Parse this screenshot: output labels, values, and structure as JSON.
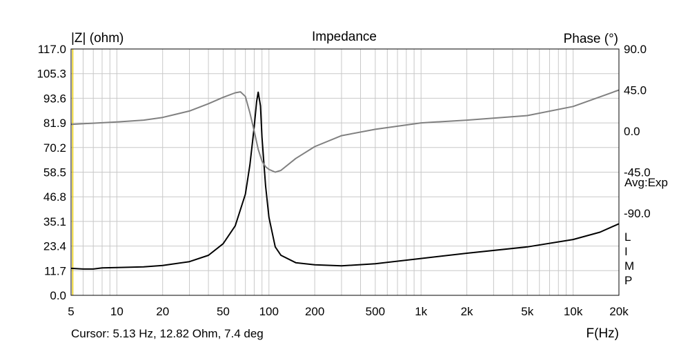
{
  "chart_data": {
    "type": "line",
    "title": "Impedance",
    "left_axis_label": "|Z| (ohm)",
    "right_axis_label": "Phase (°)",
    "x_axis_label": "F(Hz)",
    "x_scale": "log",
    "xlim": [
      5,
      20000
    ],
    "ylim": [
      0.0,
      117.0
    ],
    "y2lim": [
      -180,
      90
    ],
    "x_ticks": [
      {
        "v": 5,
        "label": "5"
      },
      {
        "v": 10,
        "label": "10"
      },
      {
        "v": 20,
        "label": "20"
      },
      {
        "v": 50,
        "label": "50"
      },
      {
        "v": 100,
        "label": "100"
      },
      {
        "v": 200,
        "label": "200"
      },
      {
        "v": 500,
        "label": "500"
      },
      {
        "v": 1000,
        "label": "1k"
      },
      {
        "v": 2000,
        "label": "2k"
      },
      {
        "v": 5000,
        "label": "5k"
      },
      {
        "v": 10000,
        "label": "10k"
      },
      {
        "v": 20000,
        "label": "20k"
      }
    ],
    "y_ticks": [
      "0.0",
      "11.7",
      "23.4",
      "35.1",
      "46.8",
      "58.5",
      "70.2",
      "81.9",
      "93.6",
      "105.3",
      "117.0"
    ],
    "y2_ticks": [
      {
        "v": 90,
        "label": "90.0"
      },
      {
        "v": 45,
        "label": "45.0"
      },
      {
        "v": 0,
        "label": "0.0"
      },
      {
        "v": -45,
        "label": "-45.0"
      },
      {
        "v": -90,
        "label": "-90.0"
      }
    ],
    "annotation": "Avg:Exp",
    "side_letters": [
      "L",
      "I",
      "M",
      "P"
    ],
    "grid": true,
    "cursor_text": "Cursor: 5.13 Hz, 12.82 Ohm, 7.4 deg",
    "colors": {
      "impedance": "#000000",
      "phase": "#808080",
      "grid": "#c8c8c8",
      "frame": "#000000",
      "cursor": "#e6c800"
    },
    "series": [
      {
        "kind": "impedance",
        "x": [
          5,
          6,
          7,
          8,
          10,
          15,
          20,
          30,
          40,
          50,
          60,
          70,
          75,
          80,
          83,
          85,
          88,
          90,
          95,
          100,
          110,
          120,
          150,
          200,
          300,
          500,
          1000,
          2000,
          5000,
          10000,
          15000,
          20000
        ],
        "values": [
          12.8,
          12.5,
          12.5,
          13.0,
          13.2,
          13.5,
          14.2,
          16.0,
          19.0,
          24.5,
          33.0,
          48.0,
          62.0,
          80.0,
          92.0,
          96.5,
          90.0,
          75.0,
          52.0,
          37.0,
          23.0,
          19.0,
          15.5,
          14.5,
          14.0,
          15.0,
          17.5,
          20.0,
          23.0,
          26.5,
          30.0,
          34.0
        ]
      },
      {
        "kind": "phase",
        "x": [
          5,
          10,
          15,
          20,
          30,
          40,
          50,
          60,
          65,
          70,
          75,
          80,
          85,
          90,
          95,
          100,
          110,
          120,
          150,
          200,
          300,
          500,
          1000,
          2000,
          5000,
          10000,
          20000
        ],
        "values": [
          7.4,
          10.0,
          12.0,
          15.0,
          22.0,
          30.0,
          37.0,
          42.0,
          43.0,
          38.0,
          20.0,
          0.0,
          -20.0,
          -33.0,
          -39.0,
          -42.0,
          -45.0,
          -43.0,
          -30.0,
          -17.0,
          -5.0,
          2.0,
          9.0,
          12.0,
          17.0,
          27.0,
          45.0
        ]
      }
    ]
  }
}
